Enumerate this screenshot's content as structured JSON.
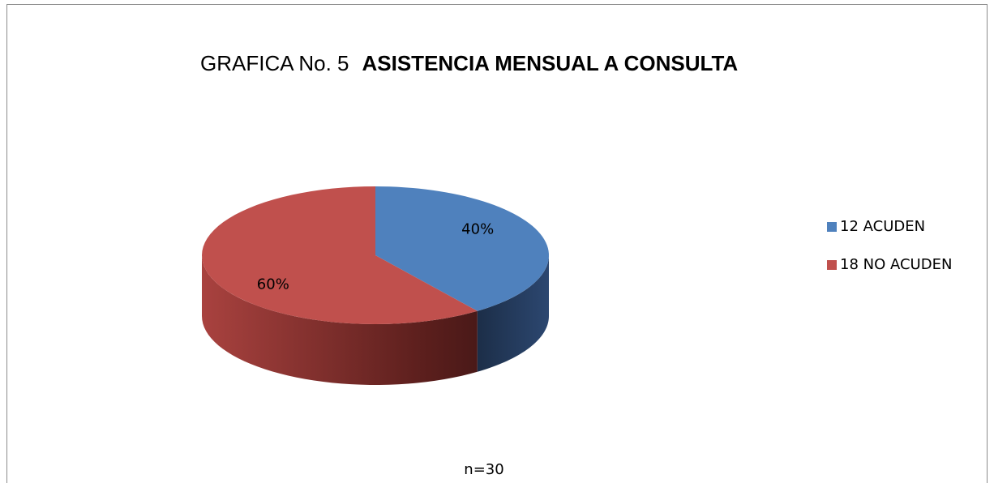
{
  "chart_data": {
    "type": "pie",
    "title": "GRAFICA No. 5",
    "subtitle": "ASISTENCIA MENSUAL A CONSULTA",
    "categories": [
      "12 ACUDEN",
      "18 NO ACUDEN"
    ],
    "values": [
      40,
      60
    ],
    "value_labels": [
      "40%",
      "60%"
    ],
    "colors": [
      "#4f81bd",
      "#c0504d"
    ],
    "annotation": "n=30",
    "legend": "right"
  }
}
